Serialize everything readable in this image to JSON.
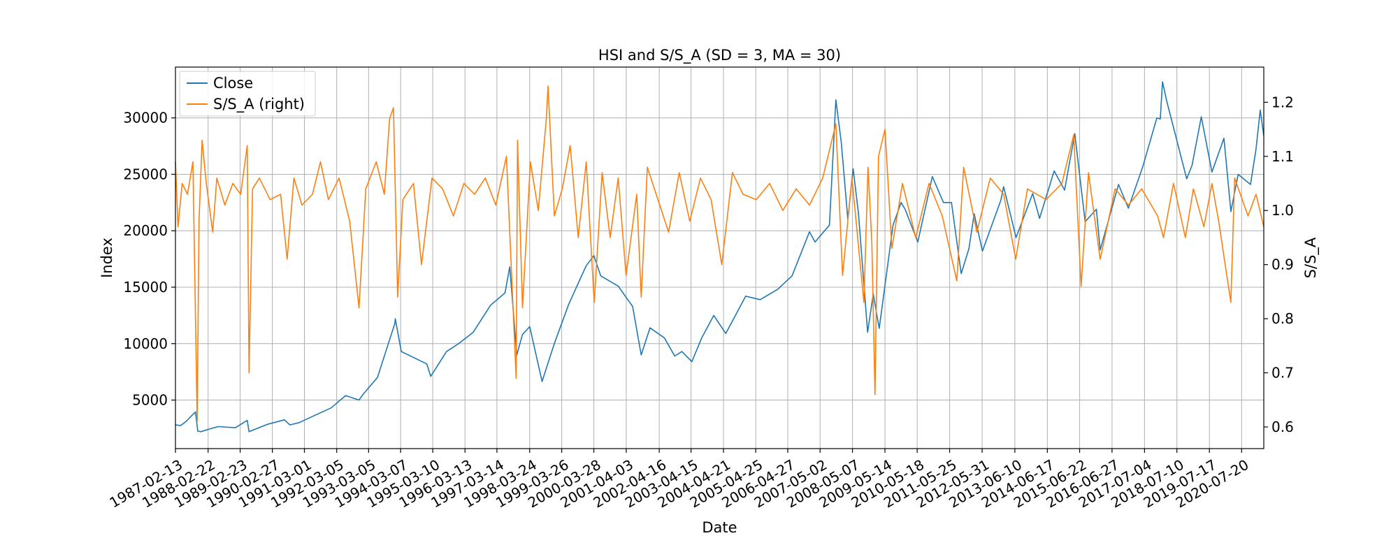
{
  "chart_data": {
    "type": "line",
    "title": "HSI and S/S_A (SD = 3, MA = 30)",
    "xlabel": "Date",
    "ylabel_left": "Index",
    "ylabel_right": "S/S_A",
    "grid": true,
    "legend_position": "top-left",
    "x_range": [
      "1987-02-13",
      "2021-03-31"
    ],
    "ylim_left": [
      700,
      34500
    ],
    "ylim_right": [
      0.56,
      1.265
    ],
    "x_tick_labels": [
      "1987-02-13",
      "1988-02-22",
      "1989-02-23",
      "1990-02-27",
      "1991-03-01",
      "1992-03-05",
      "1993-03-05",
      "1994-03-07",
      "1995-03-10",
      "1996-03-13",
      "1997-03-14",
      "1998-03-24",
      "1999-03-26",
      "2000-03-28",
      "2001-04-03",
      "2002-04-16",
      "2003-04-15",
      "2004-04-21",
      "2005-04-25",
      "2006-04-27",
      "2007-05-02",
      "2008-05-07",
      "2009-05-14",
      "2010-05-18",
      "2011-05-25",
      "2012-05-31",
      "2013-06-10",
      "2014-06-17",
      "2015-06-22",
      "2016-06-27",
      "2017-07-04",
      "2018-07-10",
      "2019-07-17",
      "2020-07-20"
    ],
    "y_ticks_left": [
      5000,
      10000,
      15000,
      20000,
      25000,
      30000
    ],
    "y_ticks_right": [
      0.6,
      0.7,
      0.8,
      0.9,
      1.0,
      1.1,
      1.2
    ],
    "series": [
      {
        "name": "Close",
        "axis": "left",
        "color": "#1f77b4",
        "points": [
          [
            "1987-02-13",
            2800
          ],
          [
            "1987-04-15",
            2750
          ],
          [
            "1987-06-15",
            3100
          ],
          [
            "1987-08-15",
            3600
          ],
          [
            "1987-10-01",
            3950
          ],
          [
            "1987-10-26",
            2250
          ],
          [
            "1987-12-01",
            2200
          ],
          [
            "1988-02-22",
            2400
          ],
          [
            "1988-06-15",
            2650
          ],
          [
            "1988-12-31",
            2550
          ],
          [
            "1989-05-15",
            3200
          ],
          [
            "1989-06-05",
            2200
          ],
          [
            "1989-12-31",
            2850
          ],
          [
            "1990-07-15",
            3250
          ],
          [
            "1990-09-15",
            2800
          ],
          [
            "1990-12-31",
            3000
          ],
          [
            "1991-06-15",
            3600
          ],
          [
            "1991-12-31",
            4300
          ],
          [
            "1992-06-15",
            5400
          ],
          [
            "1992-11-15",
            5000
          ],
          [
            "1992-12-31",
            5500
          ],
          [
            "1993-06-15",
            7000
          ],
          [
            "1993-12-31",
            11800
          ],
          [
            "1994-01-05",
            12200
          ],
          [
            "1994-03-15",
            9300
          ],
          [
            "1994-12-31",
            8200
          ],
          [
            "1995-02-15",
            7100
          ],
          [
            "1995-08-15",
            9300
          ],
          [
            "1995-12-31",
            10000
          ],
          [
            "1996-06-15",
            11000
          ],
          [
            "1996-12-31",
            13400
          ],
          [
            "1997-06-15",
            14500
          ],
          [
            "1997-08-07",
            16800
          ],
          [
            "1997-10-28",
            9000
          ],
          [
            "1997-12-31",
            10800
          ],
          [
            "1998-03-24",
            11500
          ],
          [
            "1998-08-13",
            6650
          ],
          [
            "1998-12-31",
            10000
          ],
          [
            "1999-06-15",
            13500
          ],
          [
            "1999-12-31",
            16900
          ],
          [
            "2000-03-28",
            17800
          ],
          [
            "2000-06-15",
            16000
          ],
          [
            "2000-12-31",
            15100
          ],
          [
            "2001-06-15",
            13300
          ],
          [
            "2001-09-21",
            9000
          ],
          [
            "2001-12-31",
            11400
          ],
          [
            "2002-06-15",
            10500
          ],
          [
            "2002-10-10",
            8900
          ],
          [
            "2002-12-31",
            9300
          ],
          [
            "2003-04-25",
            8400
          ],
          [
            "2003-08-15",
            10500
          ],
          [
            "2003-12-31",
            12500
          ],
          [
            "2004-05-17",
            10900
          ],
          [
            "2004-12-31",
            14200
          ],
          [
            "2005-06-15",
            13900
          ],
          [
            "2005-12-31",
            14800
          ],
          [
            "2006-06-15",
            16000
          ],
          [
            "2006-12-31",
            19900
          ],
          [
            "2007-03-05",
            19000
          ],
          [
            "2007-08-17",
            20500
          ],
          [
            "2007-10-30",
            31600
          ],
          [
            "2007-12-31",
            27800
          ],
          [
            "2008-03-15",
            21000
          ],
          [
            "2008-05-15",
            25500
          ],
          [
            "2008-07-15",
            21500
          ],
          [
            "2008-10-27",
            11000
          ],
          [
            "2008-12-31",
            14400
          ],
          [
            "2009-03-09",
            11350
          ],
          [
            "2009-08-15",
            20500
          ],
          [
            "2009-11-15",
            22500
          ],
          [
            "2009-12-31",
            21900
          ],
          [
            "2010-05-25",
            19000
          ],
          [
            "2010-11-08",
            24800
          ],
          [
            "2011-03-15",
            22500
          ],
          [
            "2011-06-15",
            22500
          ],
          [
            "2011-10-04",
            16200
          ],
          [
            "2011-12-31",
            18400
          ],
          [
            "2012-03-01",
            21500
          ],
          [
            "2012-06-04",
            18200
          ],
          [
            "2012-12-31",
            22700
          ],
          [
            "2013-02-01",
            23900
          ],
          [
            "2013-06-24",
            19400
          ],
          [
            "2013-12-31",
            23300
          ],
          [
            "2014-03-20",
            21100
          ],
          [
            "2014-09-03",
            25300
          ],
          [
            "2014-12-31",
            23600
          ],
          [
            "2015-04-27",
            28600
          ],
          [
            "2015-08-24",
            20800
          ],
          [
            "2015-12-31",
            21900
          ],
          [
            "2016-02-12",
            18300
          ],
          [
            "2016-09-09",
            24100
          ],
          [
            "2016-12-31",
            22000
          ],
          [
            "2017-06-15",
            25700
          ],
          [
            "2017-11-22",
            30000
          ],
          [
            "2017-12-31",
            29900
          ],
          [
            "2018-01-26",
            33200
          ],
          [
            "2018-03-15",
            31500
          ],
          [
            "2018-10-30",
            24600
          ],
          [
            "2018-12-31",
            25800
          ],
          [
            "2019-04-15",
            30100
          ],
          [
            "2019-08-15",
            25200
          ],
          [
            "2019-12-31",
            28200
          ],
          [
            "2020-03-19",
            21700
          ],
          [
            "2020-06-10",
            25000
          ],
          [
            "2020-10-30",
            24100
          ],
          [
            "2020-12-31",
            27200
          ],
          [
            "2021-02-18",
            30700
          ],
          [
            "2021-03-31",
            28400
          ]
        ]
      },
      {
        "name": "S/S_A (right)",
        "axis": "right",
        "color": "#ff7f0e",
        "points": [
          [
            "1987-02-13",
            1.09
          ],
          [
            "1987-03-15",
            0.97
          ],
          [
            "1987-05-01",
            1.05
          ],
          [
            "1987-07-01",
            1.03
          ],
          [
            "1987-09-01",
            1.09
          ],
          [
            "1987-10-20",
            0.61
          ],
          [
            "1987-11-10",
            0.98
          ],
          [
            "1987-12-15",
            1.13
          ],
          [
            "1988-02-01",
            1.05
          ],
          [
            "1988-04-15",
            0.96
          ],
          [
            "1988-06-01",
            1.06
          ],
          [
            "1988-09-01",
            1.01
          ],
          [
            "1988-12-01",
            1.05
          ],
          [
            "1989-03-01",
            1.03
          ],
          [
            "1989-05-15",
            1.12
          ],
          [
            "1989-06-05",
            0.7
          ],
          [
            "1989-07-15",
            1.04
          ],
          [
            "1989-10-01",
            1.06
          ],
          [
            "1990-02-01",
            1.02
          ],
          [
            "1990-06-01",
            1.03
          ],
          [
            "1990-08-15",
            0.91
          ],
          [
            "1990-11-01",
            1.06
          ],
          [
            "1991-02-01",
            1.01
          ],
          [
            "1991-06-01",
            1.03
          ],
          [
            "1991-09-01",
            1.09
          ],
          [
            "1991-12-01",
            1.02
          ],
          [
            "1992-04-01",
            1.06
          ],
          [
            "1992-08-01",
            0.98
          ],
          [
            "1992-11-15",
            0.82
          ],
          [
            "1993-02-01",
            1.04
          ],
          [
            "1993-06-01",
            1.09
          ],
          [
            "1993-09-01",
            1.03
          ],
          [
            "1993-11-01",
            1.17
          ],
          [
            "1993-12-15",
            1.19
          ],
          [
            "1994-02-01",
            0.84
          ],
          [
            "1994-04-01",
            1.02
          ],
          [
            "1994-08-01",
            1.05
          ],
          [
            "1994-11-01",
            0.9
          ],
          [
            "1995-03-01",
            1.06
          ],
          [
            "1995-07-01",
            1.04
          ],
          [
            "1995-11-01",
            0.99
          ],
          [
            "1996-03-01",
            1.05
          ],
          [
            "1996-07-01",
            1.03
          ],
          [
            "1996-11-01",
            1.06
          ],
          [
            "1997-03-01",
            1.01
          ],
          [
            "1997-07-01",
            1.1
          ],
          [
            "1997-10-20",
            0.69
          ],
          [
            "1997-11-05",
            1.13
          ],
          [
            "1998-01-01",
            0.82
          ],
          [
            "1998-04-01",
            1.09
          ],
          [
            "1998-07-01",
            1.0
          ],
          [
            "1998-10-01",
            1.17
          ],
          [
            "1998-10-20",
            1.23
          ],
          [
            "1999-01-01",
            0.99
          ],
          [
            "1999-04-01",
            1.04
          ],
          [
            "1999-07-01",
            1.12
          ],
          [
            "1999-10-01",
            0.95
          ],
          [
            "2000-01-01",
            1.09
          ],
          [
            "2000-04-01",
            0.83
          ],
          [
            "2000-07-01",
            1.07
          ],
          [
            "2000-10-01",
            0.95
          ],
          [
            "2001-01-01",
            1.06
          ],
          [
            "2001-04-01",
            0.88
          ],
          [
            "2001-08-01",
            1.03
          ],
          [
            "2001-09-21",
            0.84
          ],
          [
            "2001-12-01",
            1.08
          ],
          [
            "2002-04-01",
            1.02
          ],
          [
            "2002-08-01",
            0.96
          ],
          [
            "2002-12-01",
            1.07
          ],
          [
            "2003-04-01",
            0.98
          ],
          [
            "2003-08-01",
            1.06
          ],
          [
            "2003-12-01",
            1.02
          ],
          [
            "2004-04-01",
            0.9
          ],
          [
            "2004-08-01",
            1.07
          ],
          [
            "2004-12-01",
            1.03
          ],
          [
            "2005-05-01",
            1.02
          ],
          [
            "2005-10-01",
            1.05
          ],
          [
            "2006-03-01",
            1.0
          ],
          [
            "2006-08-01",
            1.04
          ],
          [
            "2007-01-01",
            1.01
          ],
          [
            "2007-06-01",
            1.06
          ],
          [
            "2007-10-30",
            1.16
          ],
          [
            "2008-01-15",
            0.88
          ],
          [
            "2008-05-01",
            1.06
          ],
          [
            "2008-09-15",
            0.83
          ],
          [
            "2008-11-01",
            1.08
          ],
          [
            "2008-12-15",
            0.94
          ],
          [
            "2009-01-20",
            0.66
          ],
          [
            "2009-03-01",
            1.1
          ],
          [
            "2009-05-15",
            1.15
          ],
          [
            "2009-08-01",
            0.93
          ],
          [
            "2009-12-01",
            1.05
          ],
          [
            "2010-05-01",
            0.95
          ],
          [
            "2010-10-01",
            1.05
          ],
          [
            "2011-03-01",
            0.99
          ],
          [
            "2011-08-15",
            0.87
          ],
          [
            "2011-11-01",
            1.08
          ],
          [
            "2012-04-01",
            0.96
          ],
          [
            "2012-09-01",
            1.06
          ],
          [
            "2013-02-01",
            1.03
          ],
          [
            "2013-06-20",
            0.91
          ],
          [
            "2013-11-01",
            1.04
          ],
          [
            "2014-06-01",
            1.02
          ],
          [
            "2014-12-01",
            1.05
          ],
          [
            "2015-04-15",
            1.14
          ],
          [
            "2015-07-08",
            0.86
          ],
          [
            "2015-10-01",
            1.07
          ],
          [
            "2016-02-12",
            0.91
          ],
          [
            "2016-08-01",
            1.04
          ],
          [
            "2017-01-01",
            1.01
          ],
          [
            "2017-06-01",
            1.04
          ],
          [
            "2017-12-01",
            0.99
          ],
          [
            "2018-02-06",
            0.95
          ],
          [
            "2018-06-01",
            1.05
          ],
          [
            "2018-10-15",
            0.95
          ],
          [
            "2019-01-15",
            1.04
          ],
          [
            "2019-05-15",
            0.97
          ],
          [
            "2019-08-15",
            1.05
          ],
          [
            "2019-11-01",
            0.98
          ],
          [
            "2020-03-19",
            0.83
          ],
          [
            "2020-05-01",
            1.06
          ],
          [
            "2020-10-01",
            0.99
          ],
          [
            "2021-01-01",
            1.03
          ],
          [
            "2021-03-31",
            0.97
          ]
        ]
      }
    ]
  }
}
